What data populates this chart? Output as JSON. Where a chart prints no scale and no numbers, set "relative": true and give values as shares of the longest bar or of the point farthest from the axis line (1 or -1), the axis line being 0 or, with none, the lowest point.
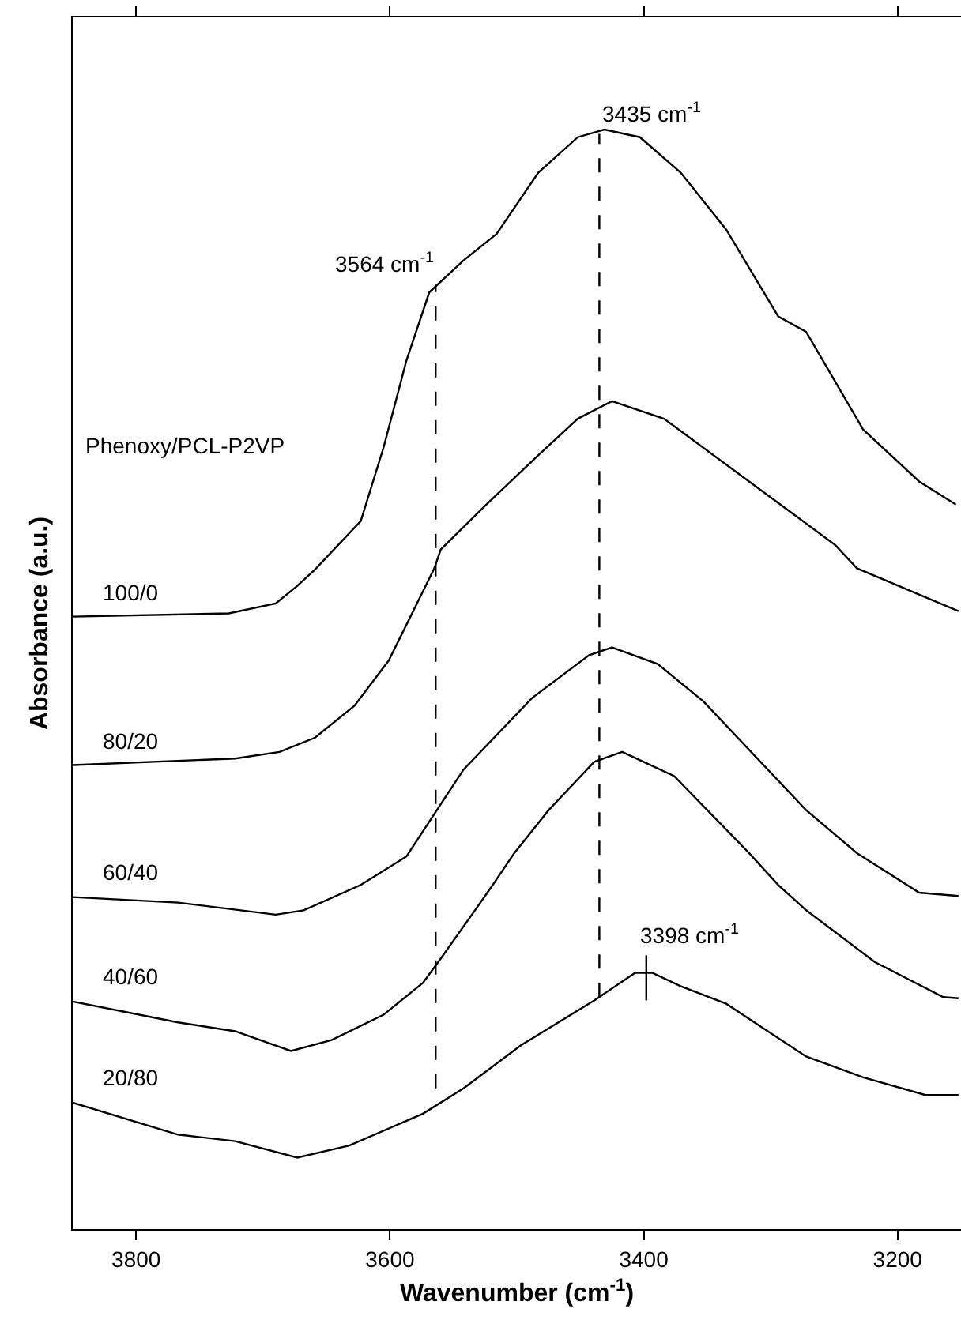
{
  "chart_data": {
    "type": "line",
    "relative": true,
    "xlabel": "Wavenumber (cm$^{-1}$)",
    "ylabel": "Absorbance (a.u.)",
    "legend_title": "Phenoxy/PCL-P2VP",
    "xlim": [
      3850,
      3150
    ],
    "xticks": [
      3800,
      3600,
      3400,
      3200
    ],
    "grid": false,
    "legend": false,
    "marker": "none",
    "line_style": "solid",
    "series": [
      {
        "name": "100/0",
        "color": "#000000",
        "x": [
          3850,
          3727,
          3690,
          3673,
          3659,
          3623,
          3605,
          3587,
          3569,
          3542,
          3516,
          3483,
          3452,
          3431,
          3403,
          3371,
          3335,
          3294,
          3272,
          3227,
          3183,
          3154
        ],
        "values": [
          0.557,
          0.56,
          0.569,
          0.585,
          0.6,
          0.644,
          0.711,
          0.79,
          0.852,
          0.881,
          0.905,
          0.961,
          0.993,
          1.0,
          0.993,
          0.961,
          0.909,
          0.83,
          0.816,
          0.727,
          0.68,
          0.659
        ]
      },
      {
        "name": "80/20",
        "color": "#000000",
        "x": [
          3850,
          3722,
          3687,
          3659,
          3628,
          3601,
          3583,
          3565,
          3560,
          3524,
          3483,
          3452,
          3425,
          3384,
          3317,
          3249,
          3232,
          3152
        ],
        "values": [
          0.422,
          0.428,
          0.434,
          0.447,
          0.476,
          0.517,
          0.559,
          0.601,
          0.618,
          0.659,
          0.704,
          0.737,
          0.753,
          0.737,
          0.68,
          0.622,
          0.601,
          0.562
        ]
      },
      {
        "name": "60/40",
        "color": "#000000",
        "x": [
          3850,
          3767,
          3690,
          3668,
          3623,
          3587,
          3542,
          3488,
          3443,
          3425,
          3389,
          3353,
          3272,
          3232,
          3183,
          3152
        ],
        "values": [
          0.302,
          0.297,
          0.286,
          0.29,
          0.313,
          0.339,
          0.418,
          0.483,
          0.522,
          0.529,
          0.514,
          0.48,
          0.381,
          0.342,
          0.306,
          0.303
        ]
      },
      {
        "name": "40/60",
        "color": "#000000",
        "x": [
          3850,
          3767,
          3722,
          3678,
          3646,
          3605,
          3574,
          3560,
          3533,
          3519,
          3502,
          3475,
          3439,
          3417,
          3376,
          3317,
          3294,
          3272,
          3218,
          3164,
          3152
        ],
        "values": [
          0.207,
          0.188,
          0.18,
          0.162,
          0.172,
          0.195,
          0.224,
          0.246,
          0.29,
          0.313,
          0.342,
          0.381,
          0.425,
          0.434,
          0.412,
          0.342,
          0.313,
          0.29,
          0.243,
          0.211,
          0.21
        ]
      },
      {
        "name": "20/80",
        "color": "#000000",
        "x": [
          3850,
          3767,
          3722,
          3673,
          3632,
          3574,
          3542,
          3497,
          3439,
          3407,
          3393,
          3371,
          3335,
          3272,
          3227,
          3178,
          3152
        ],
        "values": [
          0.115,
          0.086,
          0.08,
          0.065,
          0.076,
          0.105,
          0.128,
          0.167,
          0.208,
          0.233,
          0.233,
          0.221,
          0.205,
          0.157,
          0.138,
          0.122,
          0.122
        ]
      },
      {
        "color": "#000000",
        "line_style": "dashed",
        "x": [
          3564,
          3564
        ],
        "values": [
          0.128,
          0.859
        ]
      },
      {
        "color": "#000000",
        "line_style": "dashed",
        "x": [
          3435,
          3435
        ],
        "values": [
          0.211,
          0.996
        ]
      },
      {
        "color": "#000000",
        "x": [
          3398,
          3398
        ],
        "values": [
          0.208,
          0.249
        ]
      }
    ],
    "annotations": [
      "3564 cm$^{-1}$",
      "3435 cm$^{-1}$",
      "3398 cm$^{-1}$"
    ]
  }
}
